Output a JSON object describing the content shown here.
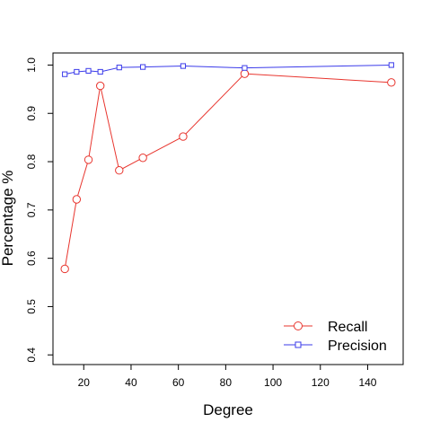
{
  "chart_data": {
    "type": "line",
    "title": "",
    "xlabel": "Degree",
    "ylabel": "Percentage %",
    "xlim": [
      7,
      155
    ],
    "ylim": [
      0.38,
      1.025
    ],
    "xticks": [
      20,
      40,
      60,
      80,
      100,
      120,
      140
    ],
    "yticks": [
      0.4,
      0.5,
      0.6,
      0.7,
      0.8,
      0.9,
      1.0
    ],
    "ytick_labels": [
      "0.4",
      "0.5",
      "0.6",
      "0.7",
      "0.8",
      "0.9",
      "1.0"
    ],
    "grid": false,
    "legend_position": "bottom-right",
    "series": [
      {
        "name": "Recall",
        "color": "#e8352e",
        "marker": "circle",
        "x": [
          12,
          17,
          22,
          27,
          35,
          45,
          62,
          88,
          150
        ],
        "y": [
          0.578,
          0.722,
          0.804,
          0.957,
          0.782,
          0.808,
          0.852,
          0.982,
          0.964
        ]
      },
      {
        "name": "Precision",
        "color": "#3b3bea",
        "marker": "square",
        "x": [
          12,
          17,
          22,
          27,
          35,
          45,
          62,
          88,
          150
        ],
        "y": [
          0.981,
          0.986,
          0.988,
          0.986,
          0.995,
          0.996,
          0.998,
          0.994,
          1.0
        ]
      }
    ]
  }
}
